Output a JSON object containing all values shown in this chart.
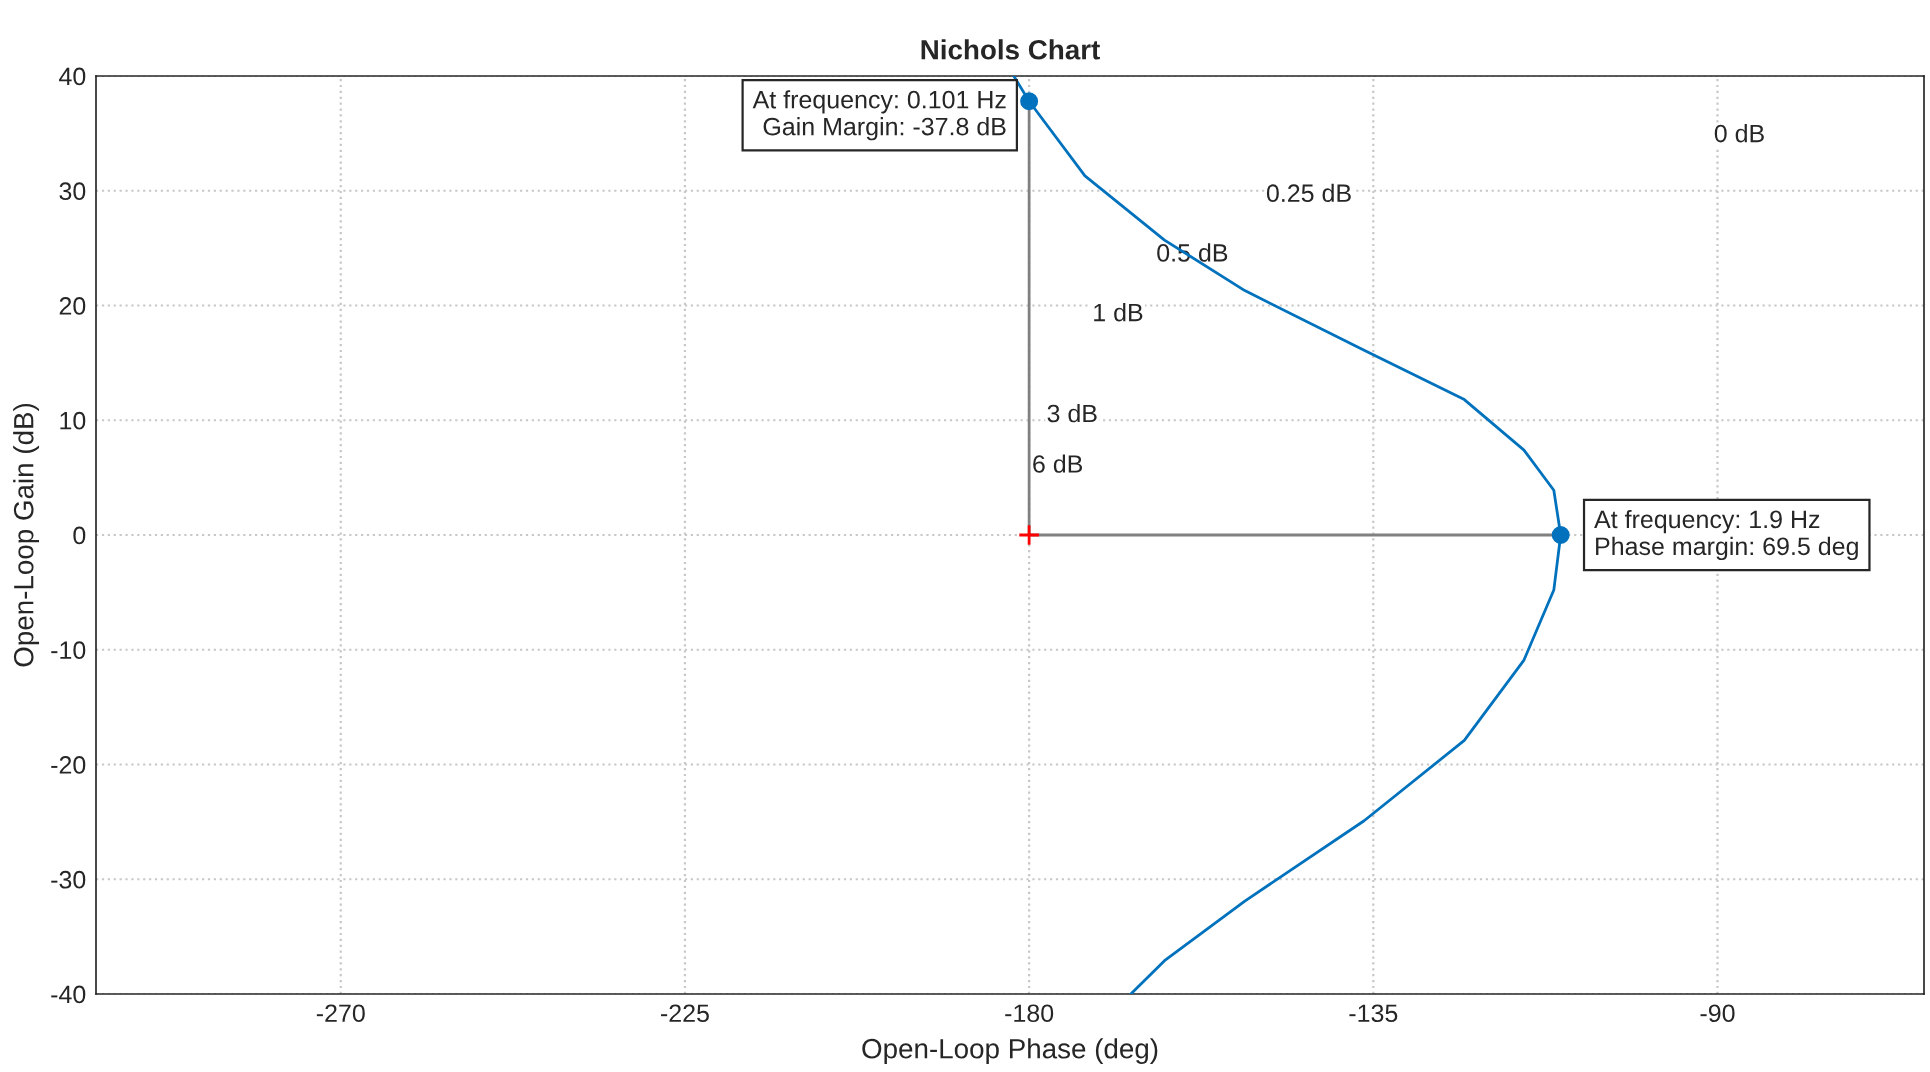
{
  "chart_data": {
    "type": "line",
    "title": "Nichols Chart",
    "xlabel": "Open-Loop Phase (deg)",
    "ylabel": "Open-Loop Gain (dB)",
    "xlim": [
      -302,
      -63
    ],
    "ylim": [
      -40,
      40
    ],
    "xticks": [
      -270,
      -225,
      -180,
      -135,
      -90
    ],
    "yticks": [
      -40,
      -30,
      -20,
      -10,
      0,
      10,
      20,
      30,
      40
    ],
    "grid": true,
    "legend": false,
    "series": [
      {
        "color": "#0072bd",
        "x": [
          -182,
          -180,
          -172.7,
          -162.3,
          -151.8,
          -136.2,
          -123.1,
          -115.3,
          -111.4,
          -110.5,
          -111.4,
          -115.3,
          -123.1,
          -136.2,
          -151.8,
          -162.3,
          -166.7
        ],
        "values": [
          40,
          37.8,
          31.3,
          25.7,
          21.3,
          16.1,
          11.8,
          7.4,
          3.9,
          0,
          -4.8,
          -10.9,
          -17.9,
          -24.9,
          -31.9,
          -37.1,
          -40
        ]
      },
      {
        "type": "line",
        "color": "#808080",
        "x": [
          -180,
          -180
        ],
        "values": [
          0,
          37.8
        ]
      },
      {
        "type": "line",
        "color": "#808080",
        "x": [
          -180,
          -110.5
        ],
        "values": [
          0,
          0
        ]
      },
      {
        "type": "scatter",
        "marker": "circle",
        "color": "#0072bd",
        "x": [
          -180,
          -110.5
        ],
        "values": [
          37.8,
          0
        ]
      },
      {
        "type": "scatter",
        "marker": "cross",
        "color": "#ff0000",
        "x": [
          -180
        ],
        "values": [
          0
        ]
      }
    ],
    "annotations": [
      {
        "text": "At frequency: 0.101 Hz\nGain Margin: -37.8 dB",
        "x": -180,
        "y": 37.8
      },
      {
        "text": "At frequency: 1.9 Hz\nPhase margin: 69.5 deg",
        "x": -110.5,
        "y": 0
      },
      "0 dB",
      "0.25 dB",
      "0.5 dB",
      "1 dB",
      "3 dB",
      "6 dB"
    ]
  }
}
